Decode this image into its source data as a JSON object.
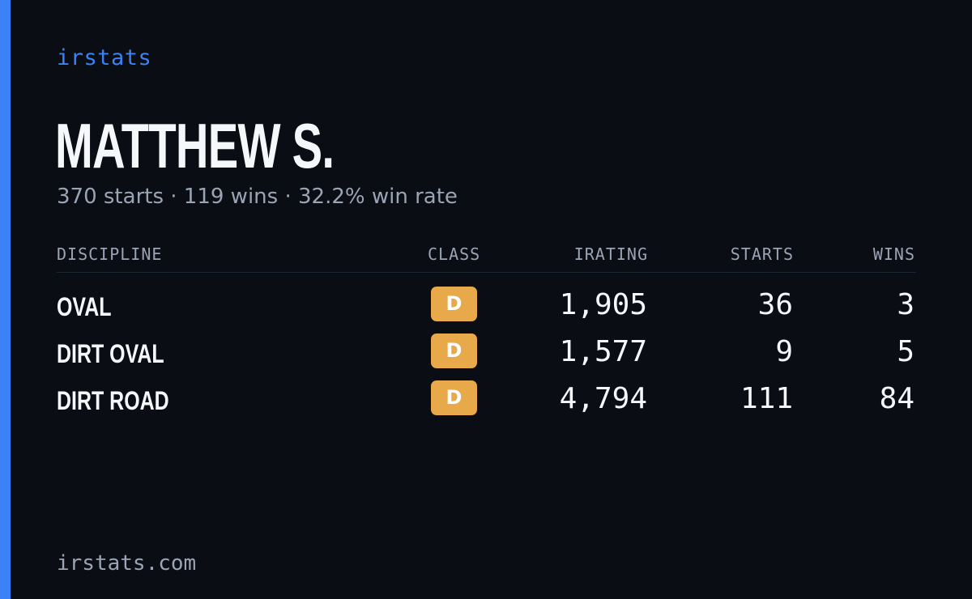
{
  "brand": "irstats",
  "player": {
    "name": "MATTHEW S.",
    "summary": "370 starts · 119 wins · 32.2% win rate"
  },
  "table": {
    "headers": {
      "discipline": "DISCIPLINE",
      "class": "CLASS",
      "irating": "IRATING",
      "starts": "STARTS",
      "wins": "WINS"
    },
    "rows": [
      {
        "discipline": "OVAL",
        "class": "D",
        "irating": "1,905",
        "starts": "36",
        "wins": "3"
      },
      {
        "discipline": "DIRT OVAL",
        "class": "D",
        "irating": "1,577",
        "starts": "9",
        "wins": "5"
      },
      {
        "discipline": "DIRT ROAD",
        "class": "D",
        "irating": "4,794",
        "starts": "111",
        "wins": "84"
      }
    ]
  },
  "footer": {
    "site": "irstats.com"
  },
  "colors": {
    "background": "#0a0d14",
    "accent": "#3b82f6",
    "class_d": "#e8a94a",
    "text_primary": "#f5f7fa",
    "text_muted": "#9aa4b4"
  }
}
